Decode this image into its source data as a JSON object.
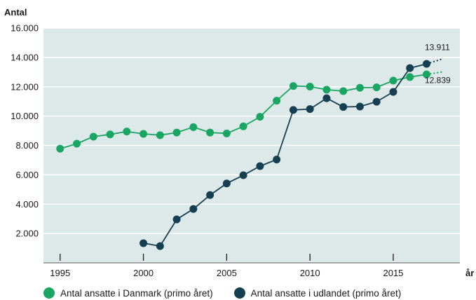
{
  "chart_data": {
    "type": "line",
    "ylabel": "Antal",
    "xlabel": "år",
    "xlim": [
      1994,
      2019
    ],
    "ylim": [
      0,
      16000
    ],
    "x_ticks": [
      1995,
      2000,
      2005,
      2010,
      2015
    ],
    "x_tick_labels": [
      "1995",
      "2000",
      "2005",
      "2010",
      "2015"
    ],
    "y_ticks": [
      2000,
      4000,
      6000,
      8000,
      10000,
      12000,
      14000,
      16000
    ],
    "y_tick_labels": [
      "2.000",
      "4.000",
      "6.000",
      "8.000",
      "10.000",
      "12.000",
      "14.000",
      "16.000"
    ],
    "grid": true,
    "legend_position": "bottom",
    "series": [
      {
        "name": "Antal ansatte i Danmark (primo året)",
        "color": "#1aa563",
        "x": [
          1995,
          1996,
          1997,
          1998,
          1999,
          2000,
          2001,
          2002,
          2003,
          2004,
          2005,
          2006,
          2007,
          2008,
          2009,
          2010,
          2011,
          2012,
          2013,
          2014,
          2015,
          2016,
          2017
        ],
        "y": [
          7780,
          8120,
          8600,
          8750,
          8950,
          8790,
          8700,
          8880,
          9250,
          8880,
          8820,
          9300,
          9950,
          11050,
          12050,
          12010,
          11800,
          11700,
          11930,
          11960,
          12420,
          12660,
          12839
        ],
        "projection": {
          "x": [
            2017,
            2018
          ],
          "y": [
            12839,
            13020
          ]
        },
        "end_label": "12.839"
      },
      {
        "name": "Antal ansatte i udlandet (primo året)",
        "color": "#173f52",
        "x": [
          2000,
          2001,
          2002,
          2003,
          2004,
          2005,
          2006,
          2007,
          2008,
          2009,
          2010,
          2011,
          2012,
          2013,
          2014,
          2015,
          2016,
          2017
        ],
        "y": [
          1340,
          1140,
          2960,
          3670,
          4620,
          5410,
          5970,
          6590,
          7040,
          10420,
          10480,
          11220,
          10620,
          10650,
          10980,
          11650,
          13270,
          13560
        ],
        "projection": {
          "x": [
            2017,
            2018
          ],
          "y": [
            13560,
            13911
          ]
        },
        "end_label": "13.911"
      }
    ]
  }
}
